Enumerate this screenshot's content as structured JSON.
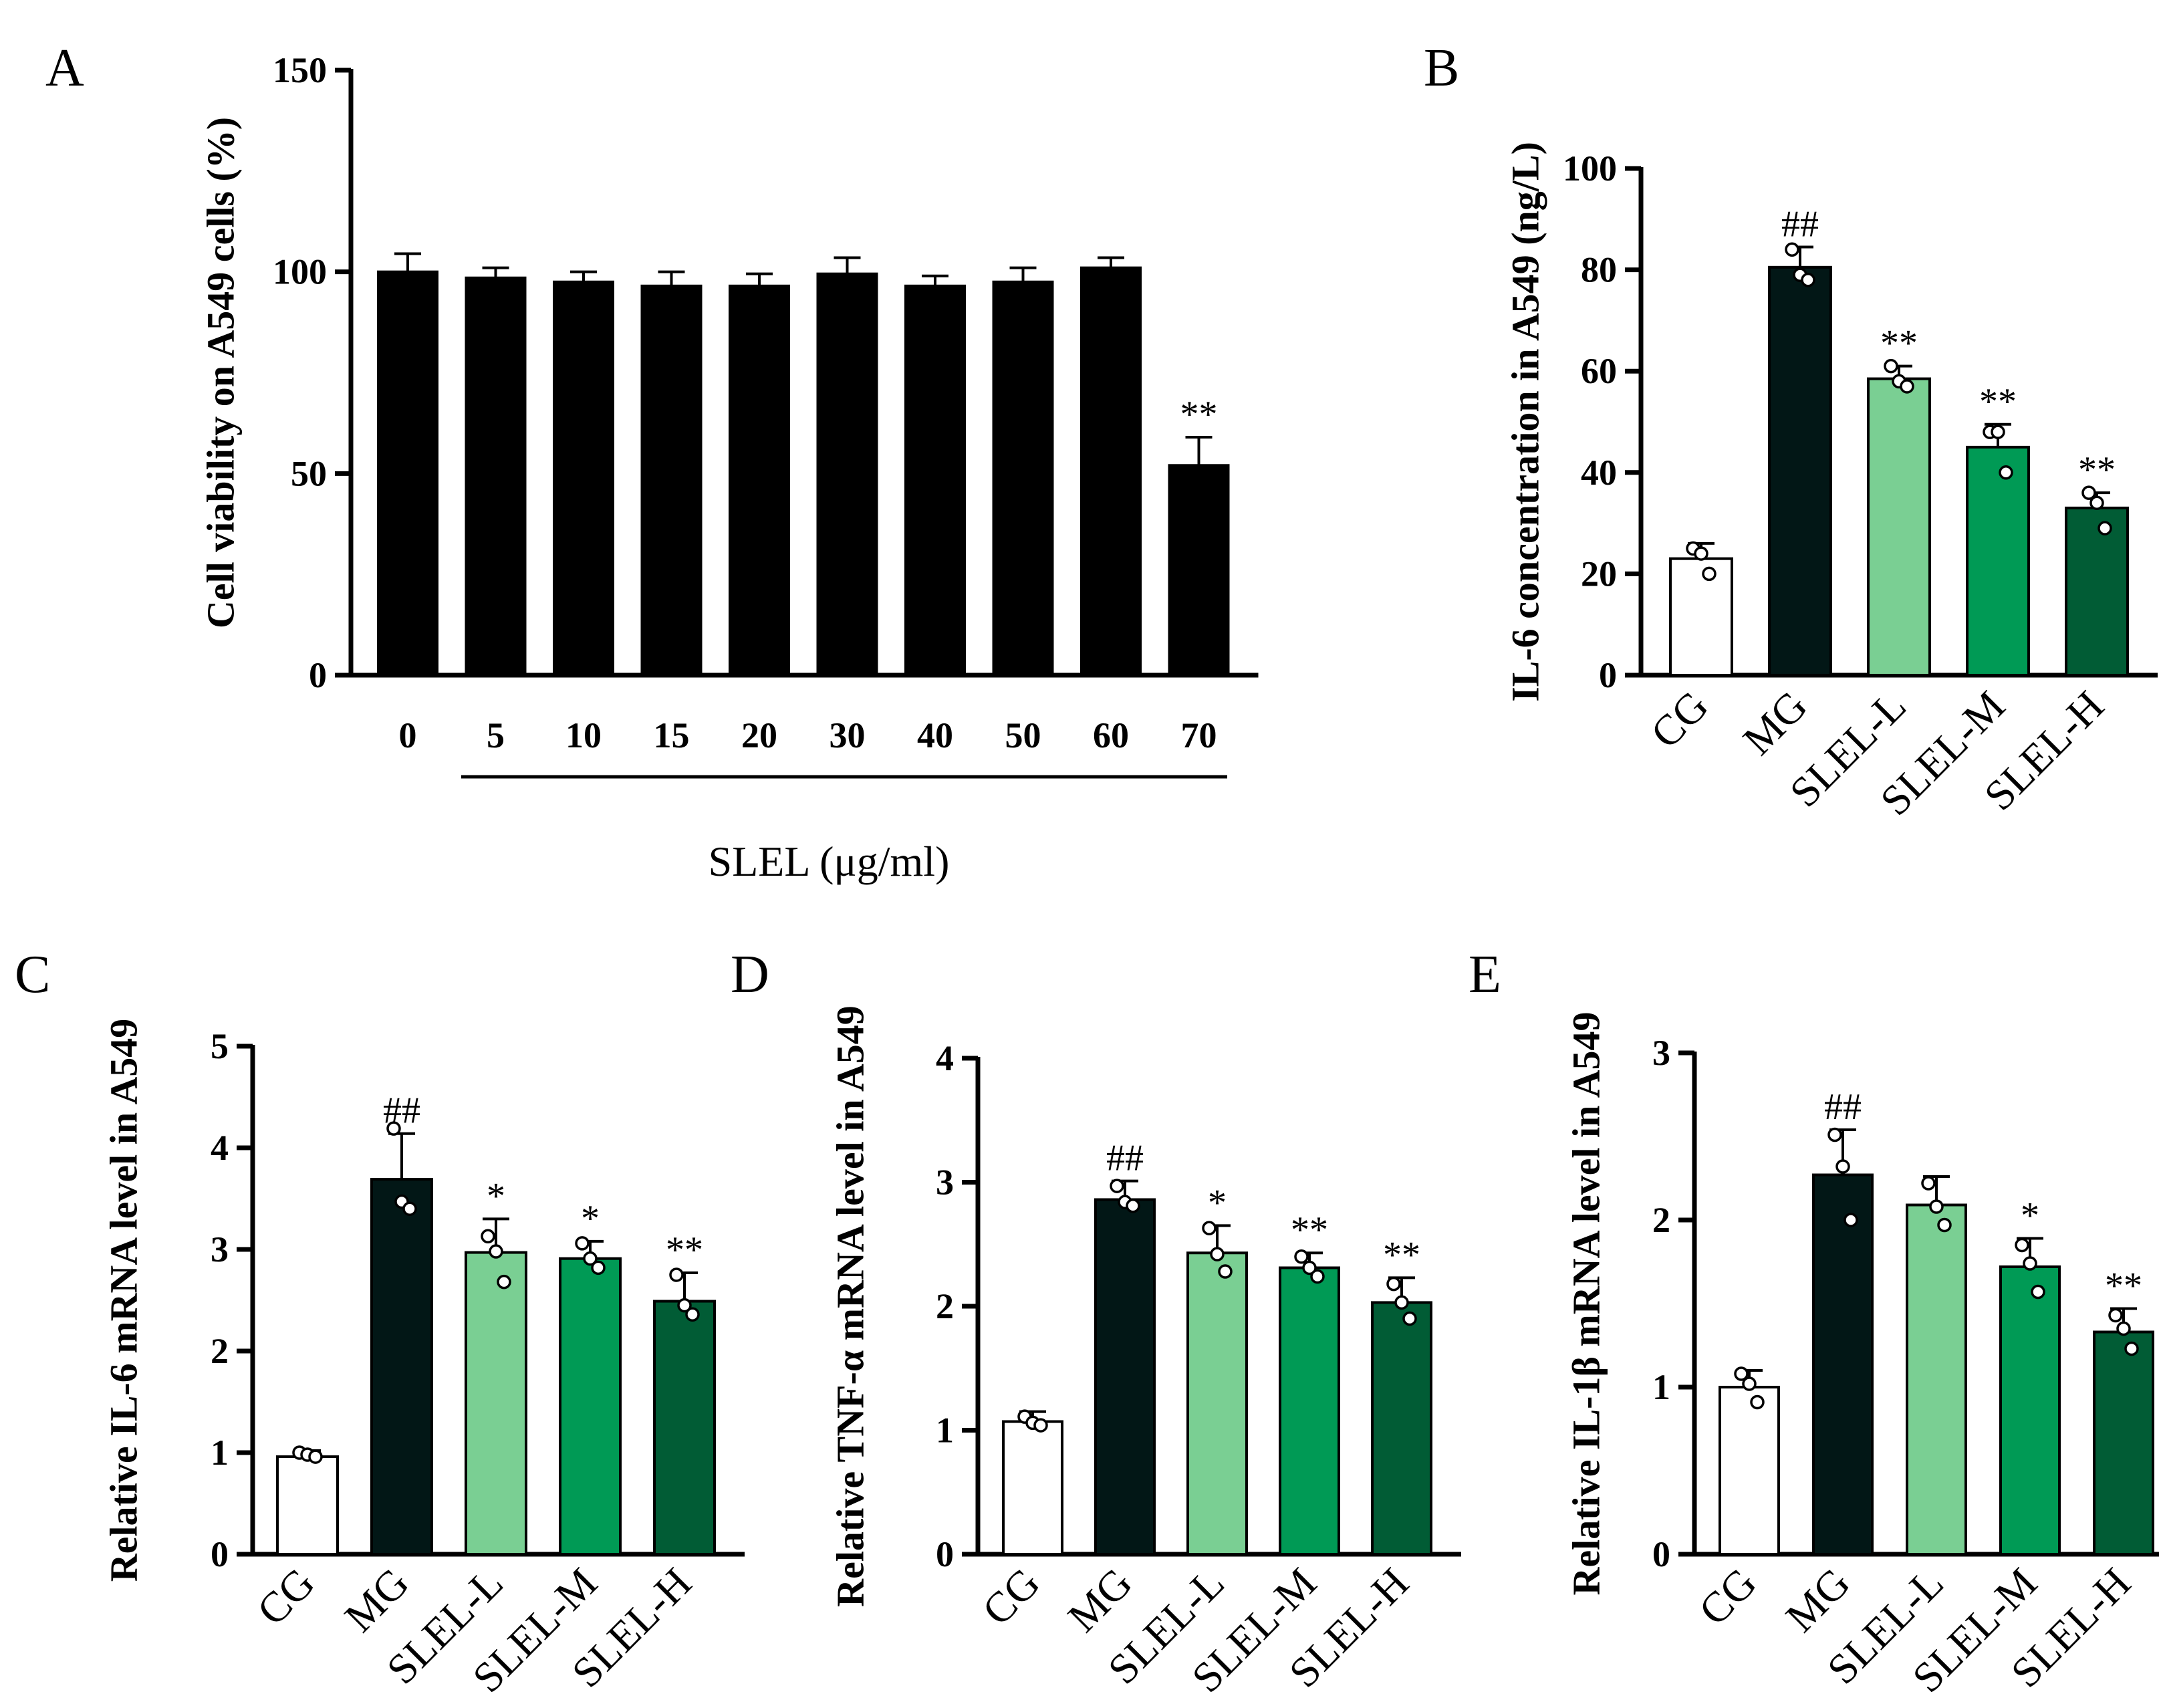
{
  "chart_data": [
    {
      "panel": "A",
      "type": "bar",
      "ylabel": "Cell viability on A549 cells (%)",
      "xlabel": "SLEL (μg/ml)",
      "ylim": [
        0,
        150
      ],
      "yticks": [
        0,
        50,
        100,
        150
      ],
      "categories": [
        "0",
        "5",
        "10",
        "15",
        "20",
        "30",
        "40",
        "50",
        "60",
        "70"
      ],
      "values": [
        100,
        98.5,
        97.5,
        96.5,
        96.5,
        99.5,
        96.5,
        97.5,
        101,
        52
      ],
      "errors": [
        4.5,
        2.5,
        2.5,
        3.5,
        3,
        4,
        2.5,
        3.5,
        2.5,
        7
      ],
      "annotations": [
        "",
        "",
        "",
        "",
        "",
        "",
        "",
        "",
        "",
        "**"
      ],
      "colors": [
        "#000000",
        "#000000",
        "#000000",
        "#000000",
        "#000000",
        "#000000",
        "#000000",
        "#000000",
        "#000000",
        "#000000"
      ],
      "underline_from": 1,
      "legend": "none"
    },
    {
      "panel": "B",
      "type": "bar",
      "ylabel": "IL-6 concentration in A549 (ng/L)",
      "ylim": [
        0,
        100
      ],
      "yticks": [
        0,
        20,
        40,
        60,
        80,
        100
      ],
      "categories": [
        "CG",
        "MG",
        "SLEL-L",
        "SLEL-M",
        "SLEL-H"
      ],
      "values": [
        23,
        80.5,
        58.5,
        45,
        33
      ],
      "errors": [
        3,
        4,
        2.5,
        4.5,
        3
      ],
      "points": [
        [
          25,
          24,
          20
        ],
        [
          84,
          79,
          78
        ],
        [
          61,
          58,
          57
        ],
        [
          48,
          48,
          40
        ],
        [
          36,
          34,
          29
        ]
      ],
      "annotations": [
        "",
        "##",
        "**",
        "**",
        "**"
      ],
      "colors": [
        "#ffffff",
        "#021716",
        "#7acf93",
        "#009a55",
        "#015c35"
      ],
      "legend": "none"
    },
    {
      "panel": "C",
      "type": "bar",
      "ylabel": "Relative IL-6 mRNA level in A549",
      "ylim": [
        0,
        5
      ],
      "yticks": [
        0,
        1,
        2,
        3,
        4,
        5
      ],
      "categories": [
        "CG",
        "MG",
        "SLEL-L",
        "SLEL-M",
        "SLEL-H"
      ],
      "values": [
        0.96,
        3.69,
        2.97,
        2.91,
        2.49
      ],
      "errors": [
        0.06,
        0.45,
        0.33,
        0.17,
        0.28
      ],
      "points": [
        [
          1.0,
          0.98,
          0.96
        ],
        [
          4.19,
          3.47,
          3.4
        ],
        [
          3.13,
          2.98,
          2.68
        ],
        [
          3.06,
          2.91,
          2.82
        ],
        [
          2.75,
          2.45,
          2.36
        ]
      ],
      "annotations": [
        "",
        "##",
        "*",
        "*",
        "**"
      ],
      "colors": [
        "#ffffff",
        "#021716",
        "#7acf93",
        "#009a55",
        "#015c35"
      ],
      "legend": "none"
    },
    {
      "panel": "D",
      "type": "bar",
      "ylabel": "Relative TNF-α mRNA level in A549",
      "ylim": [
        0,
        4
      ],
      "yticks": [
        0,
        1,
        2,
        3,
        4
      ],
      "categories": [
        "CG",
        "MG",
        "SLEL-L",
        "SLEL-M",
        "SLEL-H"
      ],
      "values": [
        1.07,
        2.86,
        2.43,
        2.31,
        2.03
      ],
      "errors": [
        0.08,
        0.15,
        0.22,
        0.12,
        0.2
      ],
      "points": [
        [
          1.11,
          1.06,
          1.04
        ],
        [
          2.97,
          2.84,
          2.81
        ],
        [
          2.63,
          2.42,
          2.28
        ],
        [
          2.4,
          2.31,
          2.24
        ],
        [
          2.18,
          2.03,
          1.9
        ]
      ],
      "annotations": [
        "",
        "##",
        "*",
        "**",
        "**"
      ],
      "colors": [
        "#ffffff",
        "#021716",
        "#7acf93",
        "#009a55",
        "#015c35"
      ],
      "legend": "none"
    },
    {
      "panel": "E",
      "type": "bar",
      "ylabel": "Relative IL-1β mRNA level in A549",
      "ylim": [
        0,
        3
      ],
      "yticks": [
        0,
        1,
        2,
        3
      ],
      "categories": [
        "CG",
        "MG",
        "SLEL-L",
        "SLEL-M",
        "SLEL-H"
      ],
      "values": [
        1.0,
        2.27,
        2.09,
        1.72,
        1.33
      ],
      "errors": [
        0.1,
        0.27,
        0.17,
        0.17,
        0.14
      ],
      "points": [
        [
          1.08,
          1.02,
          0.91
        ],
        [
          2.51,
          2.32,
          2.0
        ],
        [
          2.22,
          2.08,
          1.97
        ],
        [
          1.85,
          1.74,
          1.57
        ],
        [
          1.43,
          1.35,
          1.23
        ]
      ],
      "annotations": [
        "",
        "##",
        "",
        "*",
        "**"
      ],
      "colors": [
        "#ffffff",
        "#021716",
        "#7acf93",
        "#009a55",
        "#015c35"
      ],
      "legend": "none"
    }
  ]
}
